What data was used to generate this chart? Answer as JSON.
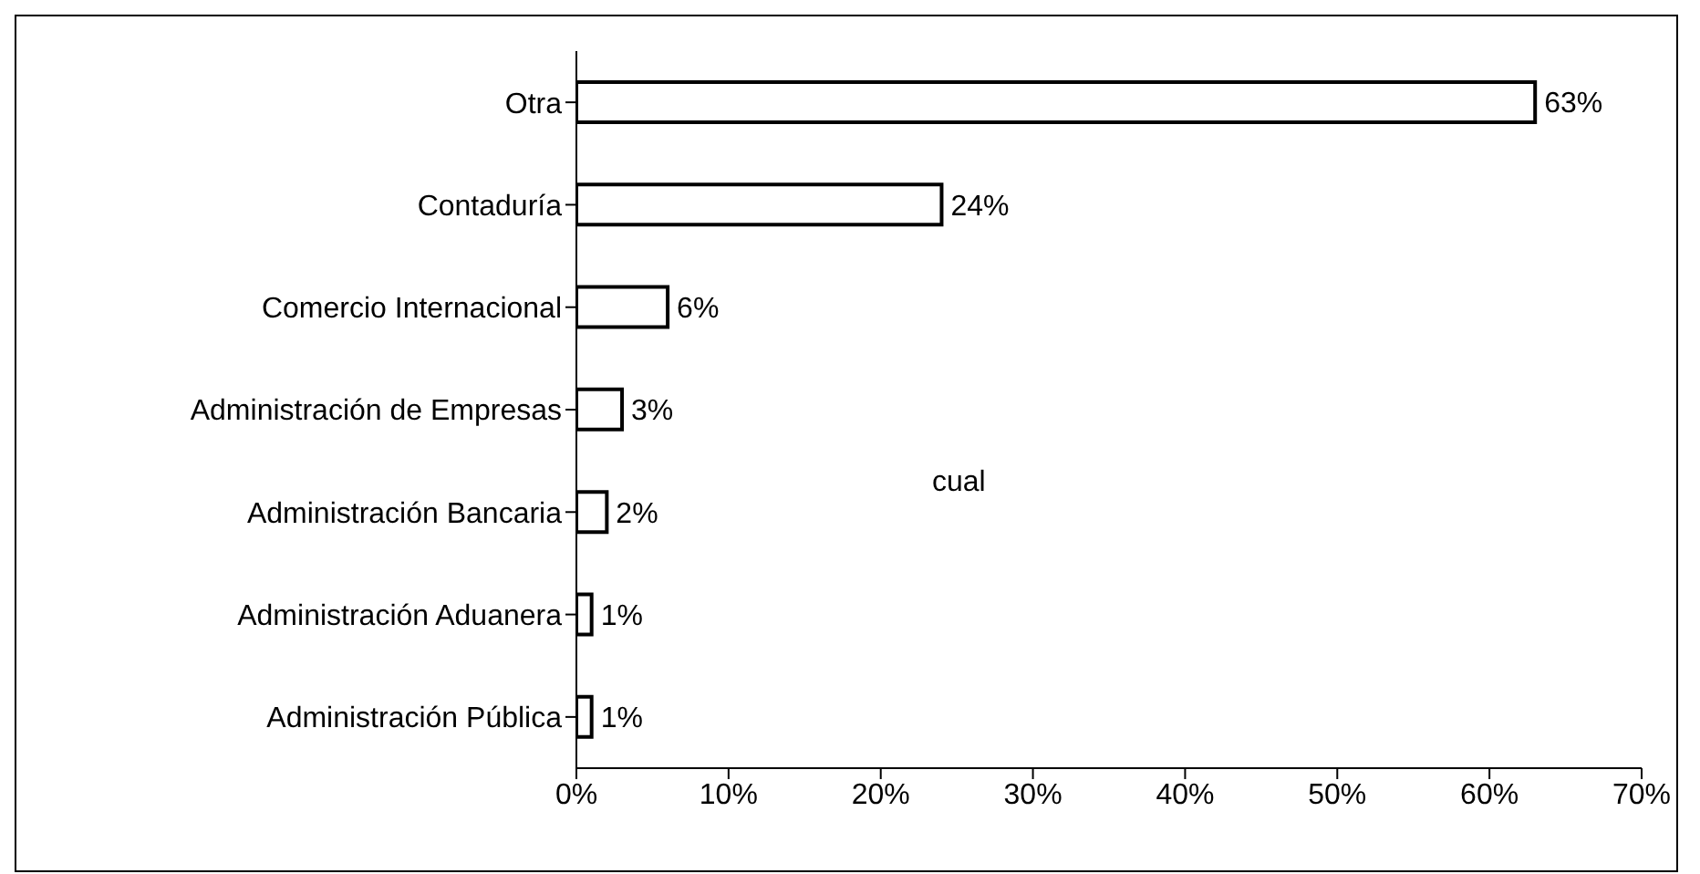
{
  "chart_data": {
    "type": "bar",
    "orientation": "horizontal",
    "categories": [
      "Otra",
      "Contaduría",
      "Comercio Internacional",
      "Administración de Empresas",
      "Administración Bancaria",
      "Administración Aduanera",
      "Administración Pública"
    ],
    "values": [
      63,
      24,
      6,
      3,
      2,
      1,
      1
    ],
    "value_labels": [
      "63%",
      "24%",
      "6%",
      "3%",
      "2%",
      "1%",
      "1%"
    ],
    "color": "#ffffff",
    "xlim": [
      0,
      70
    ],
    "xticks": [
      {
        "value": 0,
        "label": "0%"
      },
      {
        "value": 10,
        "label": "10%"
      },
      {
        "value": 20,
        "label": "20%"
      },
      {
        "value": 30,
        "label": "30%"
      },
      {
        "value": 40,
        "label": "40%"
      },
      {
        "value": 50,
        "label": "50%"
      },
      {
        "value": 60,
        "label": "60%"
      },
      {
        "value": 70,
        "label": "70%"
      }
    ],
    "annotations": [
      "cual"
    ],
    "grid": false
  }
}
